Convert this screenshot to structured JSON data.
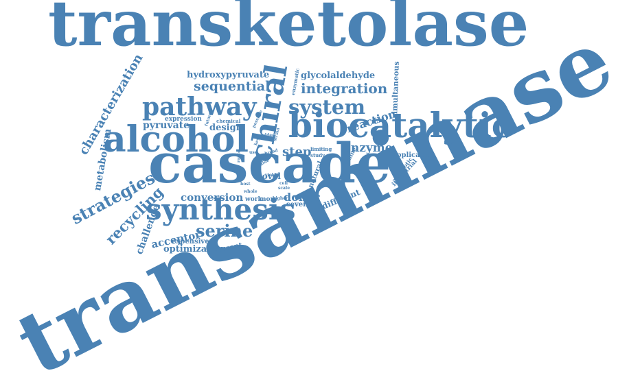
{
  "colors": {
    "word": "#4a82b4",
    "background": "#ffffff"
  },
  "words": [
    "transketolase",
    "transaminase",
    "cascade",
    "biocatalytic",
    "alcohol",
    "synthesis",
    "pathway",
    "chiral",
    "system",
    "integration",
    "sequential",
    "strategies",
    "recycling",
    "characterization",
    "serine",
    "step",
    "enzyme",
    "donor",
    "acceptor",
    "pyruvate",
    "hydroxypyruvate",
    "glycolaldehyde",
    "design",
    "conversion",
    "challenge",
    "metabolism",
    "optimization",
    "reaction",
    "novel",
    "different",
    "simultaneous",
    "application",
    "industrial",
    "expression",
    "expensive",
    "present",
    "several",
    "natural",
    "work",
    "more",
    "limiting",
    "study",
    "chemical",
    "future",
    "amine",
    "enzymatic",
    "cell",
    "whole",
    "higher",
    "possible",
    "broad",
    "antibiotic",
    "scale",
    "host",
    "yield",
    "key",
    "route",
    "added",
    "use",
    "value",
    "strain"
  ]
}
